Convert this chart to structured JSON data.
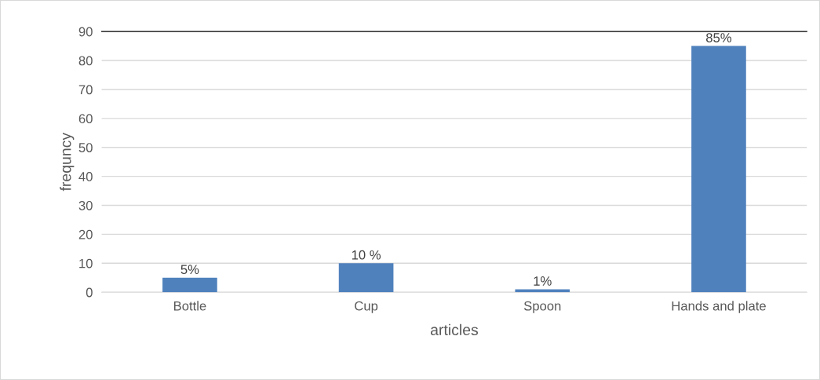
{
  "chart_data": {
    "type": "bar",
    "xlabel": "articles",
    "ylabel": "frequncy",
    "categories": [
      "Bottle",
      "Cup",
      "Spoon",
      "Hands and plate"
    ],
    "values": [
      5,
      10,
      1,
      85
    ],
    "value_labels": [
      "5%",
      "10 %",
      "1%",
      "85%"
    ],
    "color": "#4f81bd",
    "ylim": [
      0,
      90
    ],
    "yticks": [
      0,
      10,
      20,
      30,
      40,
      50,
      60,
      70,
      80,
      90
    ],
    "grid": "y"
  }
}
